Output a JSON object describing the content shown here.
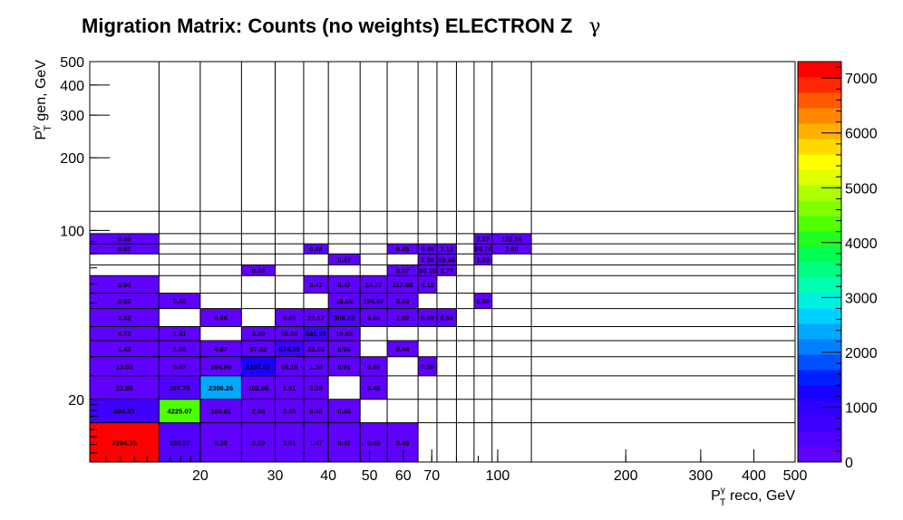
{
  "chart_data": {
    "type": "heatmap",
    "title": "Migration Matrix: Counts (no weights) ELECTRON Z",
    "title_symbol": "γ",
    "xlabel": {
      "main": "P",
      "sup": "γ",
      "sub": "T",
      "rest": " reco, GeV"
    },
    "ylabel": {
      "main": "P",
      "sup": "γ",
      "sub": "T",
      "rest": " gen, GeV"
    },
    "x_scale": "log",
    "y_scale": "log",
    "x_range": [
      11,
      500
    ],
    "y_range": [
      11,
      500
    ],
    "x_bin_edges": [
      11,
      16,
      20,
      25,
      30,
      35,
      40,
      47.5,
      55,
      65,
      72,
      80,
      88,
      97,
      120,
      500
    ],
    "y_bin_edges": [
      11,
      16,
      20,
      25,
      30,
      35,
      40,
      47.5,
      55,
      65,
      72,
      80,
      88,
      97,
      120,
      500
    ],
    "x_ticks": [
      {
        "v": 20,
        "label": "20"
      },
      {
        "v": 30,
        "label": "30"
      },
      {
        "v": 40,
        "label": "40"
      },
      {
        "v": 50,
        "label": "50"
      },
      {
        "v": 60,
        "label": "60"
      },
      {
        "v": 70,
        "label": "70"
      },
      {
        "v": 100,
        "label": "100"
      },
      {
        "v": 200,
        "label": "200"
      },
      {
        "v": 300,
        "label": "300"
      },
      {
        "v": 400,
        "label": "400"
      },
      {
        "v": 500,
        "label": "500"
      }
    ],
    "y_ticks": [
      {
        "v": 20,
        "label": "20"
      },
      {
        "v": 100,
        "label": "100"
      },
      {
        "v": 200,
        "label": "200"
      },
      {
        "v": 300,
        "label": "300"
      },
      {
        "v": 400,
        "label": "400"
      },
      {
        "v": 500,
        "label": "500"
      }
    ],
    "z_range": [
      0,
      7300
    ],
    "z_ticks": [
      0,
      1000,
      2000,
      3000,
      4000,
      5000,
      6000,
      7000
    ],
    "palette": [
      "#6000ff",
      "#4f00ff",
      "#4000ff",
      "#2e00ff",
      "#1a00ff",
      "#0020ff",
      "#0050ff",
      "#0080ff",
      "#00a8ff",
      "#00d0ff",
      "#00f0e0",
      "#00ffb0",
      "#00ff80",
      "#00ff50",
      "#20ff20",
      "#50ff00",
      "#80ff00",
      "#b0ff00",
      "#e0ff00",
      "#ffff00",
      "#ffd800",
      "#ffb000",
      "#ff8800",
      "#ff5a00",
      "#ff2800",
      "#ff0000"
    ],
    "cells": [
      {
        "i": 0,
        "j": 0,
        "v": 7284.35,
        "t": "7284.35"
      },
      {
        "i": 1,
        "j": 0,
        "v": 330.27,
        "t": "330.27"
      },
      {
        "i": 2,
        "j": 0,
        "v": 9.38,
        "t": "9.38"
      },
      {
        "i": 3,
        "j": 0,
        "v": 3.29,
        "t": "3.29"
      },
      {
        "i": 4,
        "j": 0,
        "v": 3.01,
        "t": "3.01"
      },
      {
        "i": 5,
        "j": 0,
        "v": 1.47,
        "t": "1.47"
      },
      {
        "i": 6,
        "j": 0,
        "v": 0.47,
        "t": "0.47"
      },
      {
        "i": 7,
        "j": 0,
        "v": 0.45,
        "t": "0.45"
      },
      {
        "i": 8,
        "j": 0,
        "v": 0.45,
        "t": "0.45"
      },
      {
        "i": 0,
        "j": 1,
        "v": 603.33,
        "t": "603.33"
      },
      {
        "i": 1,
        "j": 1,
        "v": 4225.07,
        "t": "4225.07"
      },
      {
        "i": 2,
        "j": 1,
        "v": 189.81,
        "t": "189.81"
      },
      {
        "i": 3,
        "j": 1,
        "v": 2.58,
        "t": "2.58"
      },
      {
        "i": 4,
        "j": 1,
        "v": 0.45,
        "t": "0.45"
      },
      {
        "i": 5,
        "j": 1,
        "v": 0.48,
        "t": "0.48"
      },
      {
        "i": 6,
        "j": 1,
        "v": 0.46,
        "t": "0.46"
      },
      {
        "i": 0,
        "j": 2,
        "v": 22.85,
        "t": "22.85"
      },
      {
        "i": 1,
        "j": 2,
        "v": 307.75,
        "t": "307.75"
      },
      {
        "i": 2,
        "j": 2,
        "v": 2306.26,
        "t": "2306.26"
      },
      {
        "i": 3,
        "j": 2,
        "v": 102.96,
        "t": "102.96"
      },
      {
        "i": 4,
        "j": 2,
        "v": 1.91,
        "t": "1.91"
      },
      {
        "i": 5,
        "j": 2,
        "v": 3.38,
        "t": "3.38"
      },
      {
        "i": 7,
        "j": 2,
        "v": 0.48,
        "t": "0.48"
      },
      {
        "i": 0,
        "j": 3,
        "v": 13.53,
        "t": "13.53"
      },
      {
        "i": 1,
        "j": 3,
        "v": 5.07,
        "t": "5.07"
      },
      {
        "i": 2,
        "j": 3,
        "v": 164.9,
        "t": "164.90"
      },
      {
        "i": 3,
        "j": 3,
        "v": 1197.02,
        "t": "1197.02"
      },
      {
        "i": 4,
        "j": 3,
        "v": 68.1,
        "t": "68.10"
      },
      {
        "i": 5,
        "j": 3,
        "v": 1.38,
        "t": "1.38"
      },
      {
        "i": 6,
        "j": 3,
        "v": 0.91,
        "t": "0.91"
      },
      {
        "i": 7,
        "j": 3,
        "v": 0.48,
        "t": "0.48"
      },
      {
        "i": 9,
        "j": 3,
        "v": 0.56,
        "t": "0.56"
      },
      {
        "i": 0,
        "j": 4,
        "v": 1.43,
        "t": "1.43"
      },
      {
        "i": 1,
        "j": 4,
        "v": 1.86,
        "t": "1.86"
      },
      {
        "i": 2,
        "j": 4,
        "v": 4.07,
        "t": "4.07"
      },
      {
        "i": 3,
        "j": 4,
        "v": 87.52,
        "t": "87.52"
      },
      {
        "i": 4,
        "j": 4,
        "v": 674.95,
        "t": "674.95"
      },
      {
        "i": 5,
        "j": 4,
        "v": 33.5,
        "t": "33.50"
      },
      {
        "i": 6,
        "j": 4,
        "v": 0.96,
        "t": "0.96"
      },
      {
        "i": 8,
        "j": 4,
        "v": 0.44,
        "t": "0.44"
      },
      {
        "i": 0,
        "j": 5,
        "v": 4.72,
        "t": "4.72"
      },
      {
        "i": 1,
        "j": 5,
        "v": 1.41,
        "t": "1.41"
      },
      {
        "i": 3,
        "j": 5,
        "v": 3.2,
        "t": "3.20"
      },
      {
        "i": 4,
        "j": 5,
        "v": 55.0,
        "t": "55.00"
      },
      {
        "i": 5,
        "j": 5,
        "v": 641.07,
        "t": "641.07"
      },
      {
        "i": 6,
        "j": 5,
        "v": 19.83,
        "t": "19.83"
      },
      {
        "i": 0,
        "j": 6,
        "v": 3.32,
        "t": "3.32"
      },
      {
        "i": 2,
        "j": 6,
        "v": 0.46,
        "t": "0.46"
      },
      {
        "i": 4,
        "j": 6,
        "v": 0.45,
        "t": "0.45"
      },
      {
        "i": 5,
        "j": 6,
        "v": 27.17,
        "t": "27.17"
      },
      {
        "i": 6,
        "j": 6,
        "v": 306.72,
        "t": "306.72"
      },
      {
        "i": 7,
        "j": 6,
        "v": 9.46,
        "t": "9.46"
      },
      {
        "i": 8,
        "j": 6,
        "v": 1.02,
        "t": "1.02"
      },
      {
        "i": 9,
        "j": 6,
        "v": 0.49,
        "t": "0.49"
      },
      {
        "i": 10,
        "j": 6,
        "v": 0.54,
        "t": "0.54"
      },
      {
        "i": 0,
        "j": 7,
        "v": 0.52,
        "t": "0.52"
      },
      {
        "i": 1,
        "j": 7,
        "v": 0.48,
        "t": "0.48"
      },
      {
        "i": 6,
        "j": 7,
        "v": 18.65,
        "t": "18.65"
      },
      {
        "i": 7,
        "j": 7,
        "v": 196.87,
        "t": "196.87"
      },
      {
        "i": 8,
        "j": 7,
        "v": 5.63,
        "t": "5.63"
      },
      {
        "i": 12,
        "j": 7,
        "v": 0.59,
        "t": "0.59"
      },
      {
        "i": 0,
        "j": 8,
        "v": 0.94,
        "t": "0.94"
      },
      {
        "i": 5,
        "j": 8,
        "v": 0.47,
        "t": "0.47"
      },
      {
        "i": 6,
        "j": 8,
        "v": 0.47,
        "t": "0.47"
      },
      {
        "i": 7,
        "j": 8,
        "v": 14.77,
        "t": "14.77"
      },
      {
        "i": 8,
        "j": 8,
        "v": 117.69,
        "t": "117.69"
      },
      {
        "i": 9,
        "j": 8,
        "v": 4.12,
        "t": "4.12"
      },
      {
        "i": 3,
        "j": 9,
        "v": 0.44,
        "t": "0.44"
      },
      {
        "i": 8,
        "j": 9,
        "v": 8.07,
        "t": "8.07"
      },
      {
        "i": 9,
        "j": 9,
        "v": 80.1,
        "t": "80.10"
      },
      {
        "i": 10,
        "j": 9,
        "v": 3.77,
        "t": "3.77"
      },
      {
        "i": 6,
        "j": 10,
        "v": 0.47,
        "t": "0.47"
      },
      {
        "i": 9,
        "j": 10,
        "v": 7.38,
        "t": "7.38"
      },
      {
        "i": 10,
        "j": 10,
        "v": 53.46,
        "t": "53.46"
      },
      {
        "i": 12,
        "j": 10,
        "v": 1.03,
        "t": "1.03"
      },
      {
        "i": 0,
        "j": 11,
        "v": 0.97,
        "t": "0.97"
      },
      {
        "i": 5,
        "j": 11,
        "v": 0.48,
        "t": "0.48"
      },
      {
        "i": 8,
        "j": 11,
        "v": 0.45,
        "t": "0.45"
      },
      {
        "i": 9,
        "j": 11,
        "v": 0.49,
        "t": "0.49"
      },
      {
        "i": 10,
        "j": 11,
        "v": 7.12,
        "t": "7.12"
      },
      {
        "i": 12,
        "j": 11,
        "v": 86.74,
        "t": "86.74"
      },
      {
        "i": 13,
        "j": 11,
        "v": 2.68,
        "t": "2.68"
      },
      {
        "i": 0,
        "j": 12,
        "v": 0.46,
        "t": "0.46"
      },
      {
        "i": 12,
        "j": 12,
        "v": 2.57,
        "t": "2.57"
      },
      {
        "i": 13,
        "j": 12,
        "v": 122.59,
        "t": "122.59"
      }
    ]
  }
}
